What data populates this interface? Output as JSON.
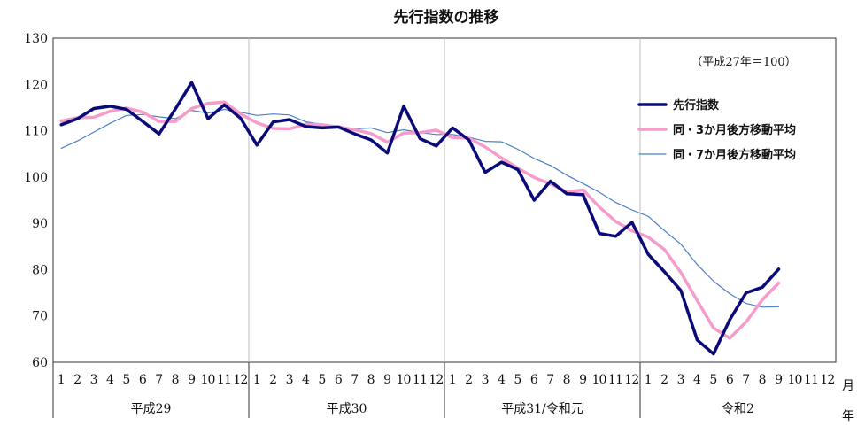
{
  "chart_data": {
    "type": "line",
    "title": "先行指数の推移",
    "note": "（平成27年＝100）",
    "ylim": [
      60,
      130
    ],
    "yticks": [
      60,
      70,
      80,
      90,
      100,
      110,
      120,
      130
    ],
    "month_labels": [
      "1",
      "2",
      "3",
      "4",
      "5",
      "6",
      "7",
      "8",
      "9",
      "10",
      "11",
      "12",
      "1",
      "2",
      "3",
      "4",
      "5",
      "6",
      "7",
      "8",
      "9",
      "10",
      "11",
      "12",
      "1",
      "2",
      "3",
      "4",
      "5",
      "6",
      "7",
      "8",
      "9",
      "10",
      "11",
      "12",
      "1",
      "2",
      "3",
      "4",
      "5",
      "6",
      "7",
      "8",
      "9",
      "10",
      "11",
      "12"
    ],
    "year_groups": [
      "平成29",
      "平成30",
      "平成31/令和元",
      "令和2"
    ],
    "x_unit_month": "月",
    "x_unit_year": "年",
    "legend_placement": "right",
    "grid": false,
    "series": [
      {
        "name": "先行指数",
        "color": "#0a0a78",
        "width": 3.5,
        "values": [
          111.3,
          112.6,
          114.8,
          115.3,
          114.6,
          112.0,
          109.3,
          114.7,
          120.4,
          112.6,
          115.6,
          112.7,
          106.9,
          111.9,
          112.4,
          110.9,
          110.6,
          110.8,
          109.3,
          108.0,
          105.2,
          115.3,
          108.3,
          106.7,
          110.6,
          108.0,
          101.0,
          103.2,
          101.6,
          95.0,
          99.1,
          96.4,
          96.2,
          87.8,
          87.2,
          90.2,
          83.3,
          79.5,
          75.5,
          64.8,
          61.8,
          69.2,
          75.0,
          76.2,
          80.1,
          null,
          null,
          null
        ]
      },
      {
        "name": "同・3か月後方移動平均",
        "color": "#f59ccb",
        "width": 3.5,
        "values": [
          112.1,
          112.8,
          112.9,
          114.2,
          114.9,
          114.0,
          112.0,
          112.0,
          114.8,
          115.9,
          116.2,
          113.6,
          111.7,
          110.5,
          110.4,
          111.4,
          111.3,
          110.8,
          110.2,
          109.4,
          107.5,
          109.5,
          109.6,
          110.1,
          108.5,
          108.4,
          106.5,
          104.1,
          101.9,
          99.9,
          98.5,
          96.8,
          97.2,
          93.5,
          90.4,
          88.4,
          87.0,
          84.3,
          79.4,
          73.3,
          67.4,
          65.2,
          68.7,
          73.5,
          77.1,
          null,
          null,
          null
        ]
      },
      {
        "name": "同・7か月後方移動平均",
        "color": "#4a80c8",
        "width": 1.2,
        "values": [
          106.2,
          107.8,
          109.7,
          111.6,
          113.3,
          113.5,
          113.0,
          112.6,
          114.4,
          113.8,
          114.6,
          114.0,
          113.3,
          113.6,
          113.4,
          111.9,
          111.4,
          110.9,
          110.4,
          110.6,
          109.6,
          110.2,
          109.6,
          109.2,
          109.2,
          108.6,
          107.7,
          107.6,
          106.0,
          104.0,
          102.5,
          100.4,
          98.6,
          96.7,
          94.5,
          92.9,
          91.5,
          88.4,
          85.5,
          81.1,
          77.5,
          74.8,
          72.7,
          71.9,
          72.0,
          null,
          null,
          null
        ]
      }
    ]
  }
}
